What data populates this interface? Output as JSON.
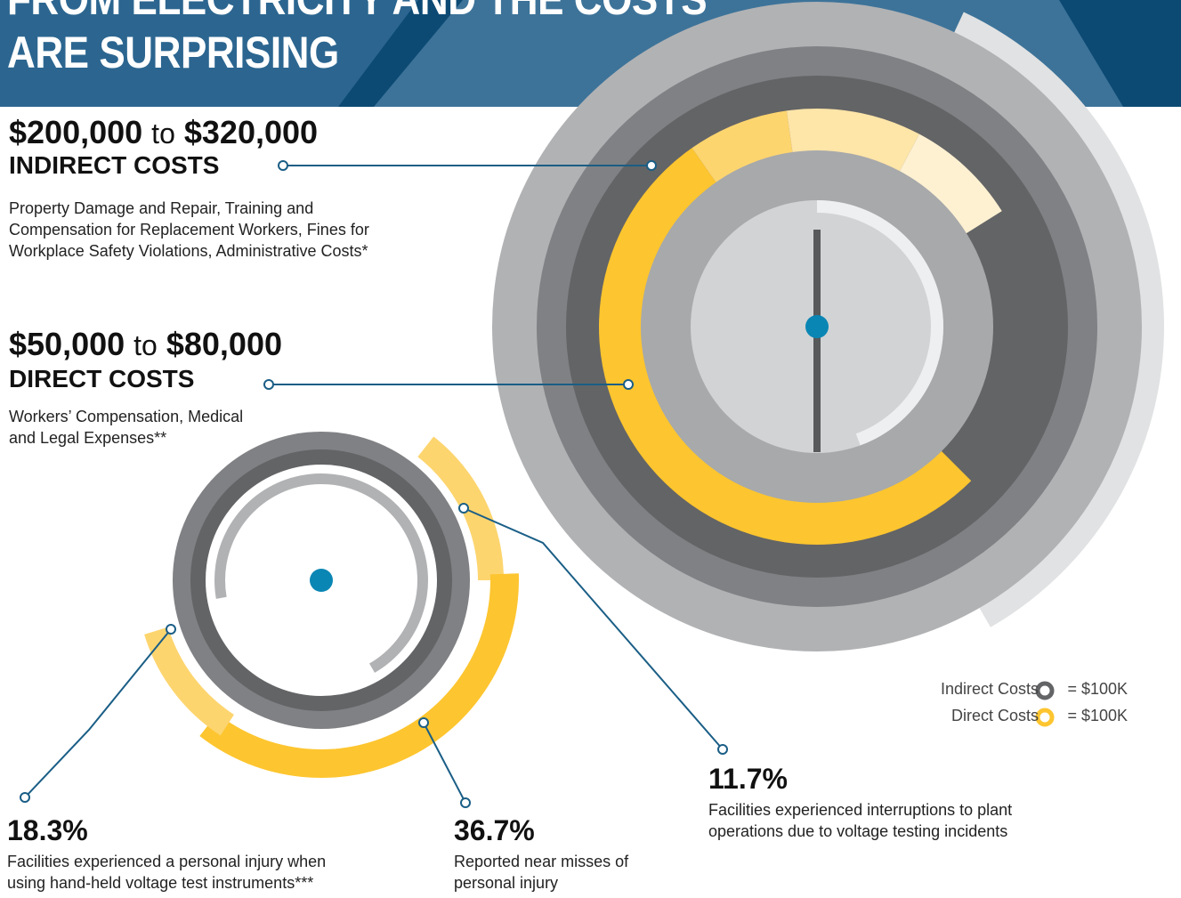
{
  "header": {
    "title_lines": [
      "FROM ELECTRICITY AND THE COSTS",
      "ARE SURPRISING"
    ]
  },
  "indirect": {
    "low": "$200,000",
    "connector": "to",
    "high": "$320,000",
    "label": "INDIRECT COSTS",
    "description_lines": [
      "Property Damage and Repair, Training and",
      "Compensation for Replacement Workers, Fines for",
      "Workplace Safety Violations, Administrative Costs*"
    ]
  },
  "direct": {
    "low": "$50,000",
    "connector": "to",
    "high": "$80,000",
    "label": "DIRECT COSTS",
    "description_lines": [
      "Workers’ Compensation, Medical",
      "and Legal Expenses**"
    ]
  },
  "stats": [
    {
      "value": "18.3%",
      "text_lines": [
        "Facilities experienced a personal injury when",
        "using hand-held voltage test instruments***"
      ]
    },
    {
      "value": "36.7%",
      "text_lines": [
        "Reported near misses of",
        "personal injury"
      ]
    },
    {
      "value": "11.7%",
      "text_lines": [
        "Facilities experienced interruptions to plant",
        "operations due to voltage testing incidents"
      ]
    }
  ],
  "legend": [
    {
      "label": "Indirect Costs",
      "value": "= $100K"
    },
    {
      "label": "Direct Costs",
      "value": "= $100K"
    }
  ]
}
